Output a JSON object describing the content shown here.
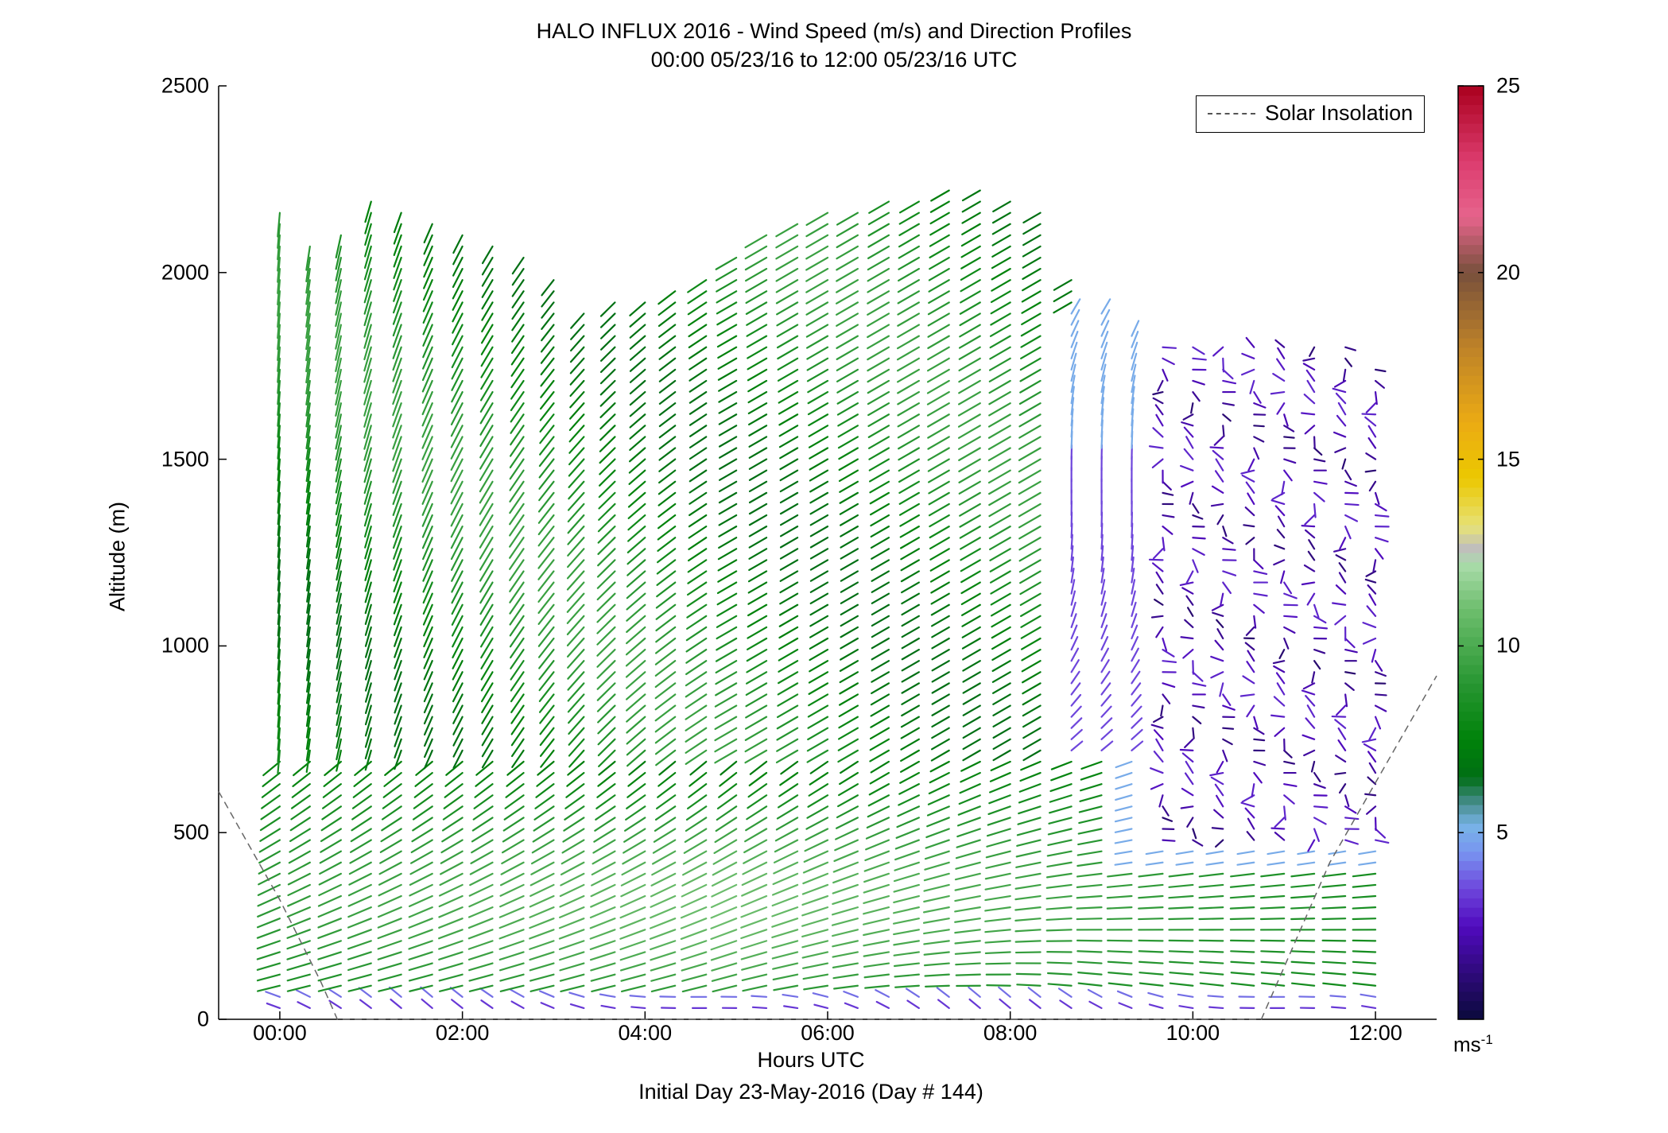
{
  "chart_data": {
    "type": "quiver",
    "title": "HALO INFLUX 2016 - Wind Speed (m/s) and Direction Profiles",
    "subtitle": "00:00 05/23/16 to 12:00 05/23/16  UTC",
    "xlabel": "Hours UTC",
    "xlabel2": "Initial Day 23-May-2016 (Day # 144)",
    "ylabel": "Altitude (m)",
    "xlim_hours": [
      -0.67,
      12.67
    ],
    "ylim": [
      0,
      2500
    ],
    "x_ticks": [
      {
        "hour": 0,
        "label": "00:00"
      },
      {
        "hour": 2,
        "label": "02:00"
      },
      {
        "hour": 4,
        "label": "04:00"
      },
      {
        "hour": 6,
        "label": "06:00"
      },
      {
        "hour": 8,
        "label": "08:00"
      },
      {
        "hour": 10,
        "label": "10:00"
      },
      {
        "hour": 12,
        "label": "12:00"
      }
    ],
    "y_ticks": [
      0,
      500,
      1000,
      1500,
      2000,
      2500
    ],
    "legend": {
      "position": "top-right",
      "entries": [
        "Solar Insolation"
      ]
    },
    "colorbar": {
      "min": 0,
      "max": 25,
      "unit": "ms",
      "unit_exp": "-1",
      "ticks": [
        5,
        10,
        15,
        20,
        25
      ]
    },
    "profile_times_hours": [
      0,
      0.33,
      0.67,
      1.0,
      1.33,
      1.67,
      2.0,
      2.33,
      2.67,
      3.0,
      3.33,
      3.67,
      4.0,
      4.33,
      4.67,
      5.0,
      5.33,
      5.67,
      6.0,
      6.33,
      6.67,
      7.0,
      7.33,
      7.67,
      8.0,
      8.33,
      8.67,
      9.0,
      9.33,
      9.67,
      10.0,
      10.33,
      10.67,
      11.0,
      11.33,
      11.67,
      12.0
    ],
    "profile_top_altitude_m": [
      2160,
      2080,
      2100,
      2200,
      2180,
      2140,
      2120,
      2080,
      2060,
      2000,
      1900,
      1920,
      1940,
      1960,
      2000,
      2050,
      2100,
      2140,
      2160,
      2180,
      2200,
      2200,
      2220,
      2220,
      2200,
      2180,
      2000,
      1900,
      1850,
      1800,
      1800,
      1800,
      1800,
      1800,
      1800,
      1800,
      1750
    ],
    "solar_insolation_curve": [
      {
        "hour": -0.67,
        "alt": 610
      },
      {
        "hour": 0.0,
        "alt": 320
      },
      {
        "hour": 0.45,
        "alt": 100
      },
      {
        "hour": 0.63,
        "alt": 0
      },
      {
        "hour": 10.75,
        "alt": 0
      },
      {
        "hour": 11.5,
        "alt": 420
      },
      {
        "hour": 12.67,
        "alt": 920
      }
    ],
    "regimes": [
      {
        "alt_range": [
          0,
          80
        ],
        "speed_ms": 3,
        "direction": "weak, variable"
      },
      {
        "alt_range": [
          80,
          700
        ],
        "speed_ms": 9,
        "direction": "westerly to south-westerly, backing with height late"
      },
      {
        "alt_range": [
          700,
          2200
        ],
        "speed_ms": 8,
        "direction": "northerly early, veering to north-easterly/easterly after 05:00"
      },
      {
        "alt_range": [
          500,
          1800
        ],
        "hours": [
          9,
          12
        ],
        "speed_ms": 2,
        "direction": "light and variable"
      }
    ]
  }
}
